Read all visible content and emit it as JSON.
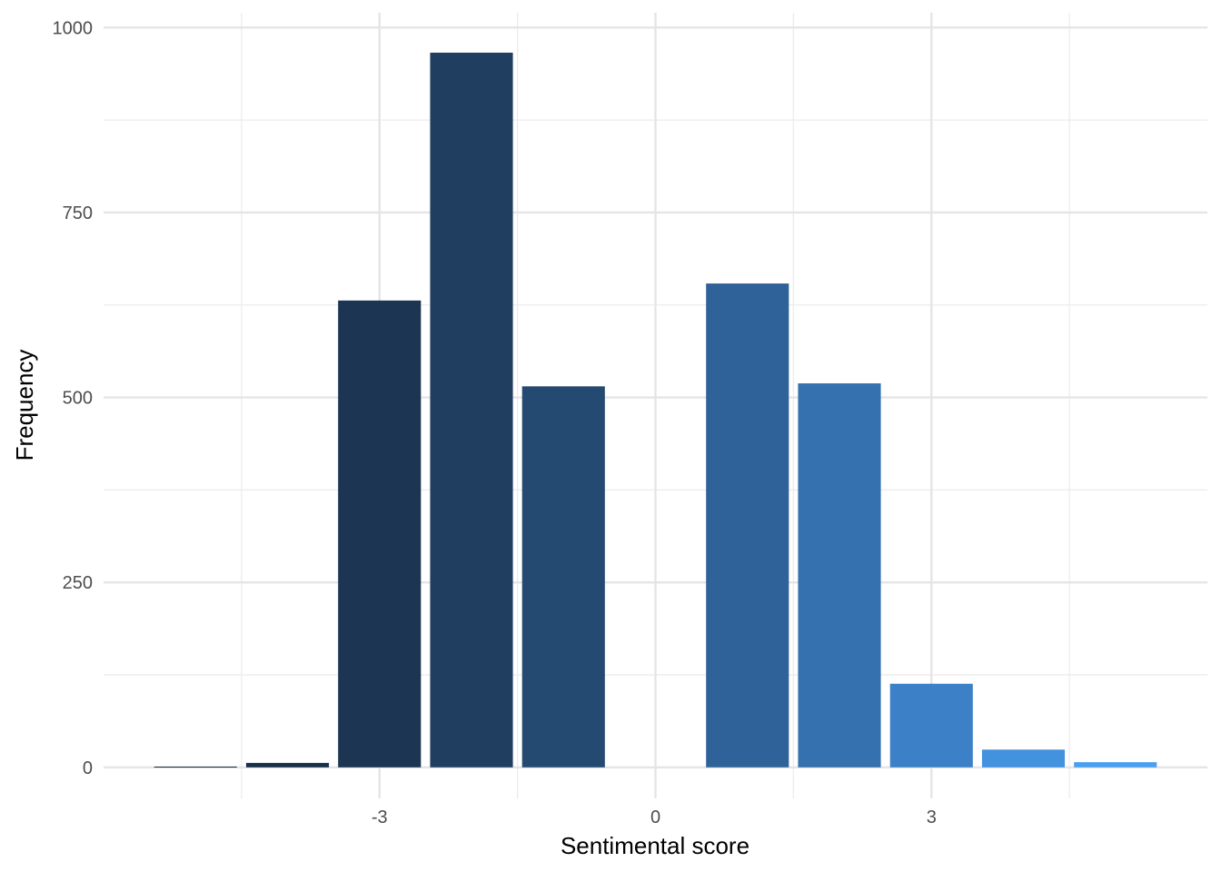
{
  "chart_data": {
    "type": "bar",
    "title": "",
    "xlabel": "Sentimental score",
    "ylabel": "Frequency",
    "x": [
      -5,
      -4,
      -3,
      -2,
      -1,
      1,
      2,
      3,
      4,
      5
    ],
    "values": [
      1,
      6,
      631,
      966,
      515,
      654,
      519,
      113,
      24,
      7
    ],
    "colors": [
      "#132B43",
      "#172F4A",
      "#1B3552",
      "#203F60",
      "#254A71",
      "#2F6298",
      "#3570AF",
      "#3C81C7",
      "#4392DE",
      "#4A9FF0"
    ],
    "xlim": [
      -6,
      6
    ],
    "ylim": [
      -42,
      1020
    ],
    "x_ticks": [
      -3,
      0,
      3
    ],
    "x_tick_labels": [
      "-3",
      "0",
      "3"
    ],
    "x_minor_ticks": [
      -4.5,
      -1.5,
      1.5,
      4.5
    ],
    "y_ticks": [
      0,
      250,
      500,
      750,
      1000
    ],
    "y_tick_labels": [
      "0",
      "250",
      "500",
      "750",
      "1000"
    ],
    "y_minor_ticks": [
      125,
      375,
      625,
      875
    ],
    "grid": true,
    "legend": "none"
  }
}
